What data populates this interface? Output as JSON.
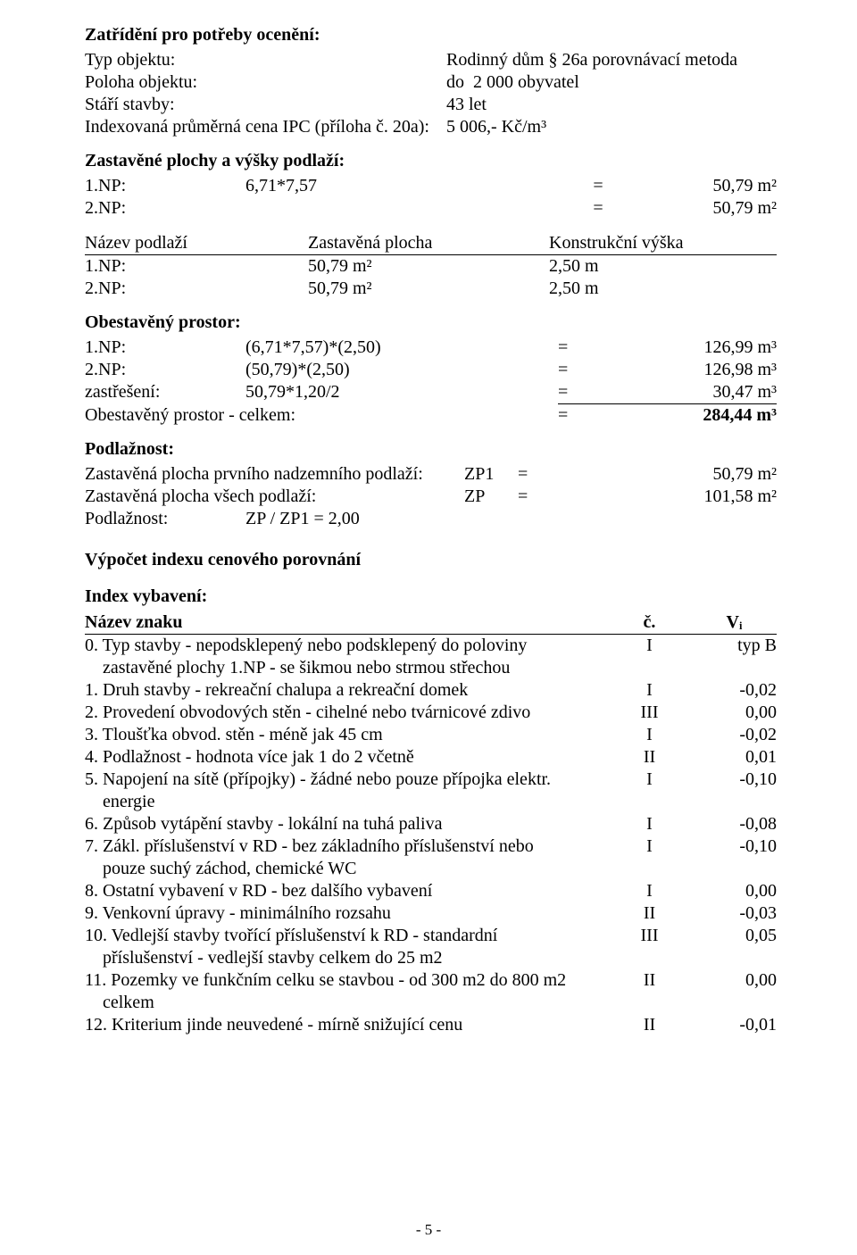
{
  "header": {
    "title": "Zatřídění pro potřeby ocenění:",
    "rows": [
      {
        "label": "Typ objektu:",
        "value": "Rodinný dům § 26a porovnávací metoda"
      },
      {
        "label": "Poloha objektu:",
        "value": "do  2 000 obyvatel"
      },
      {
        "label": "Stáří stavby:",
        "value": "43 let"
      },
      {
        "label": "Indexovaná průměrná cena IPC (příloha č. 20a):",
        "value": "5 006,- Kč/m³"
      }
    ]
  },
  "zastavene": {
    "title": "Zastavěné plochy a výšky podlaží:",
    "rows": [
      {
        "c1": "1.NP:",
        "c2": "6,71*7,57",
        "eq": "=",
        "val": "50,79 m²"
      },
      {
        "c1": "2.NP:",
        "c2": "",
        "eq": "=",
        "val": "50,79 m²"
      }
    ]
  },
  "podlazi_tbl": {
    "h1": "Název podlaží",
    "h2": "Zastavěná plocha",
    "h3": "Konstrukční výška",
    "rows": [
      {
        "c1": "1.NP:",
        "c2": "50,79 m²",
        "c3": "2,50 m"
      },
      {
        "c1": "2.NP:",
        "c2": "50,79 m²",
        "c3": "2,50 m"
      }
    ]
  },
  "obestaveny": {
    "title": "Obestavěný prostor:",
    "rows": [
      {
        "c1": "1.NP:",
        "c2": "(6,71*7,57)*(2,50)",
        "eq": "=",
        "val": "126,99 m³"
      },
      {
        "c1": "2.NP:",
        "c2": "(50,79)*(2,50)",
        "eq": "=",
        "val": "126,98 m³"
      },
      {
        "c1": "zastřešení:",
        "c2": "50,79*1,20/2",
        "eq": "=",
        "val": "30,47 m³"
      }
    ],
    "total": {
      "label": "Obestavěný prostor - celkem:",
      "eq": "=",
      "val": "284,44 m³"
    }
  },
  "podlaznost": {
    "title": "Podlažnost:",
    "rows": [
      {
        "c1": "Zastavěná plocha prvního nadzemního podlaží:",
        "c2": "ZP1",
        "eq": "=",
        "val": "50,79 m²"
      },
      {
        "c1": "Zastavěná plocha všech podlaží:",
        "c2": "ZP",
        "eq": "=",
        "val": "101,58 m²"
      }
    ],
    "ratio_label": "Podlažnost:",
    "ratio_value": "ZP / ZP1 = 2,00"
  },
  "vypocet_title": "Výpočet indexu cenového porovnání",
  "index_vybaveni": {
    "title": "Index vybavení:",
    "head_name": "Název znaku",
    "head_c": "č.",
    "head_v": "Vᵢ",
    "rows": [
      {
        "name": "0. Typ stavby - nepodsklepený nebo podsklepený do poloviny",
        "c": "I",
        "v": "typ B"
      },
      {
        "name": "    zastavěné plochy 1.NP - se šikmou nebo strmou střechou",
        "c": "",
        "v": ""
      },
      {
        "name": "1. Druh stavby - rekreační chalupa a rekreační domek",
        "c": "I",
        "v": "-0,02"
      },
      {
        "name": "2. Provedení obvodových stěn - cihelné nebo tvárnicové zdivo",
        "c": "III",
        "v": "0,00"
      },
      {
        "name": "3. Tloušťka obvod. stěn - méně jak 45 cm",
        "c": "I",
        "v": "-0,02"
      },
      {
        "name": "4. Podlažnost - hodnota více jak 1 do 2 včetně",
        "c": "II",
        "v": "0,01"
      },
      {
        "name": "5. Napojení na sítě (přípojky) - žádné nebo pouze přípojka elektr.",
        "c": "I",
        "v": "-0,10"
      },
      {
        "name": "    energie",
        "c": "",
        "v": ""
      },
      {
        "name": "6. Způsob vytápění stavby - lokální na tuhá paliva",
        "c": "I",
        "v": "-0,08"
      },
      {
        "name": "7. Zákl. příslušenství v RD - bez základního příslušenství nebo",
        "c": "I",
        "v": "-0,10"
      },
      {
        "name": "    pouze suchý záchod, chemické WC",
        "c": "",
        "v": ""
      },
      {
        "name": "8. Ostatní vybavení v RD - bez dalšího vybavení",
        "c": "I",
        "v": "0,00"
      },
      {
        "name": "9. Venkovní úpravy - minimálního rozsahu",
        "c": "II",
        "v": "-0,03"
      },
      {
        "name": "10. Vedlejší stavby tvořící příslušenství k RD - standardní",
        "c": "III",
        "v": "0,05"
      },
      {
        "name": "    příslušenství - vedlejší stavby celkem do 25 m2",
        "c": "",
        "v": ""
      },
      {
        "name": "11. Pozemky ve funkčním celku se stavbou - od 300 m2 do 800 m2",
        "c": "II",
        "v": "0,00"
      },
      {
        "name": "    celkem",
        "c": "",
        "v": ""
      },
      {
        "name": "12. Kriterium jinde neuvedené - mírně snižující cenu",
        "c": "II",
        "v": "-0,01"
      }
    ]
  },
  "footer": "- 5 -"
}
